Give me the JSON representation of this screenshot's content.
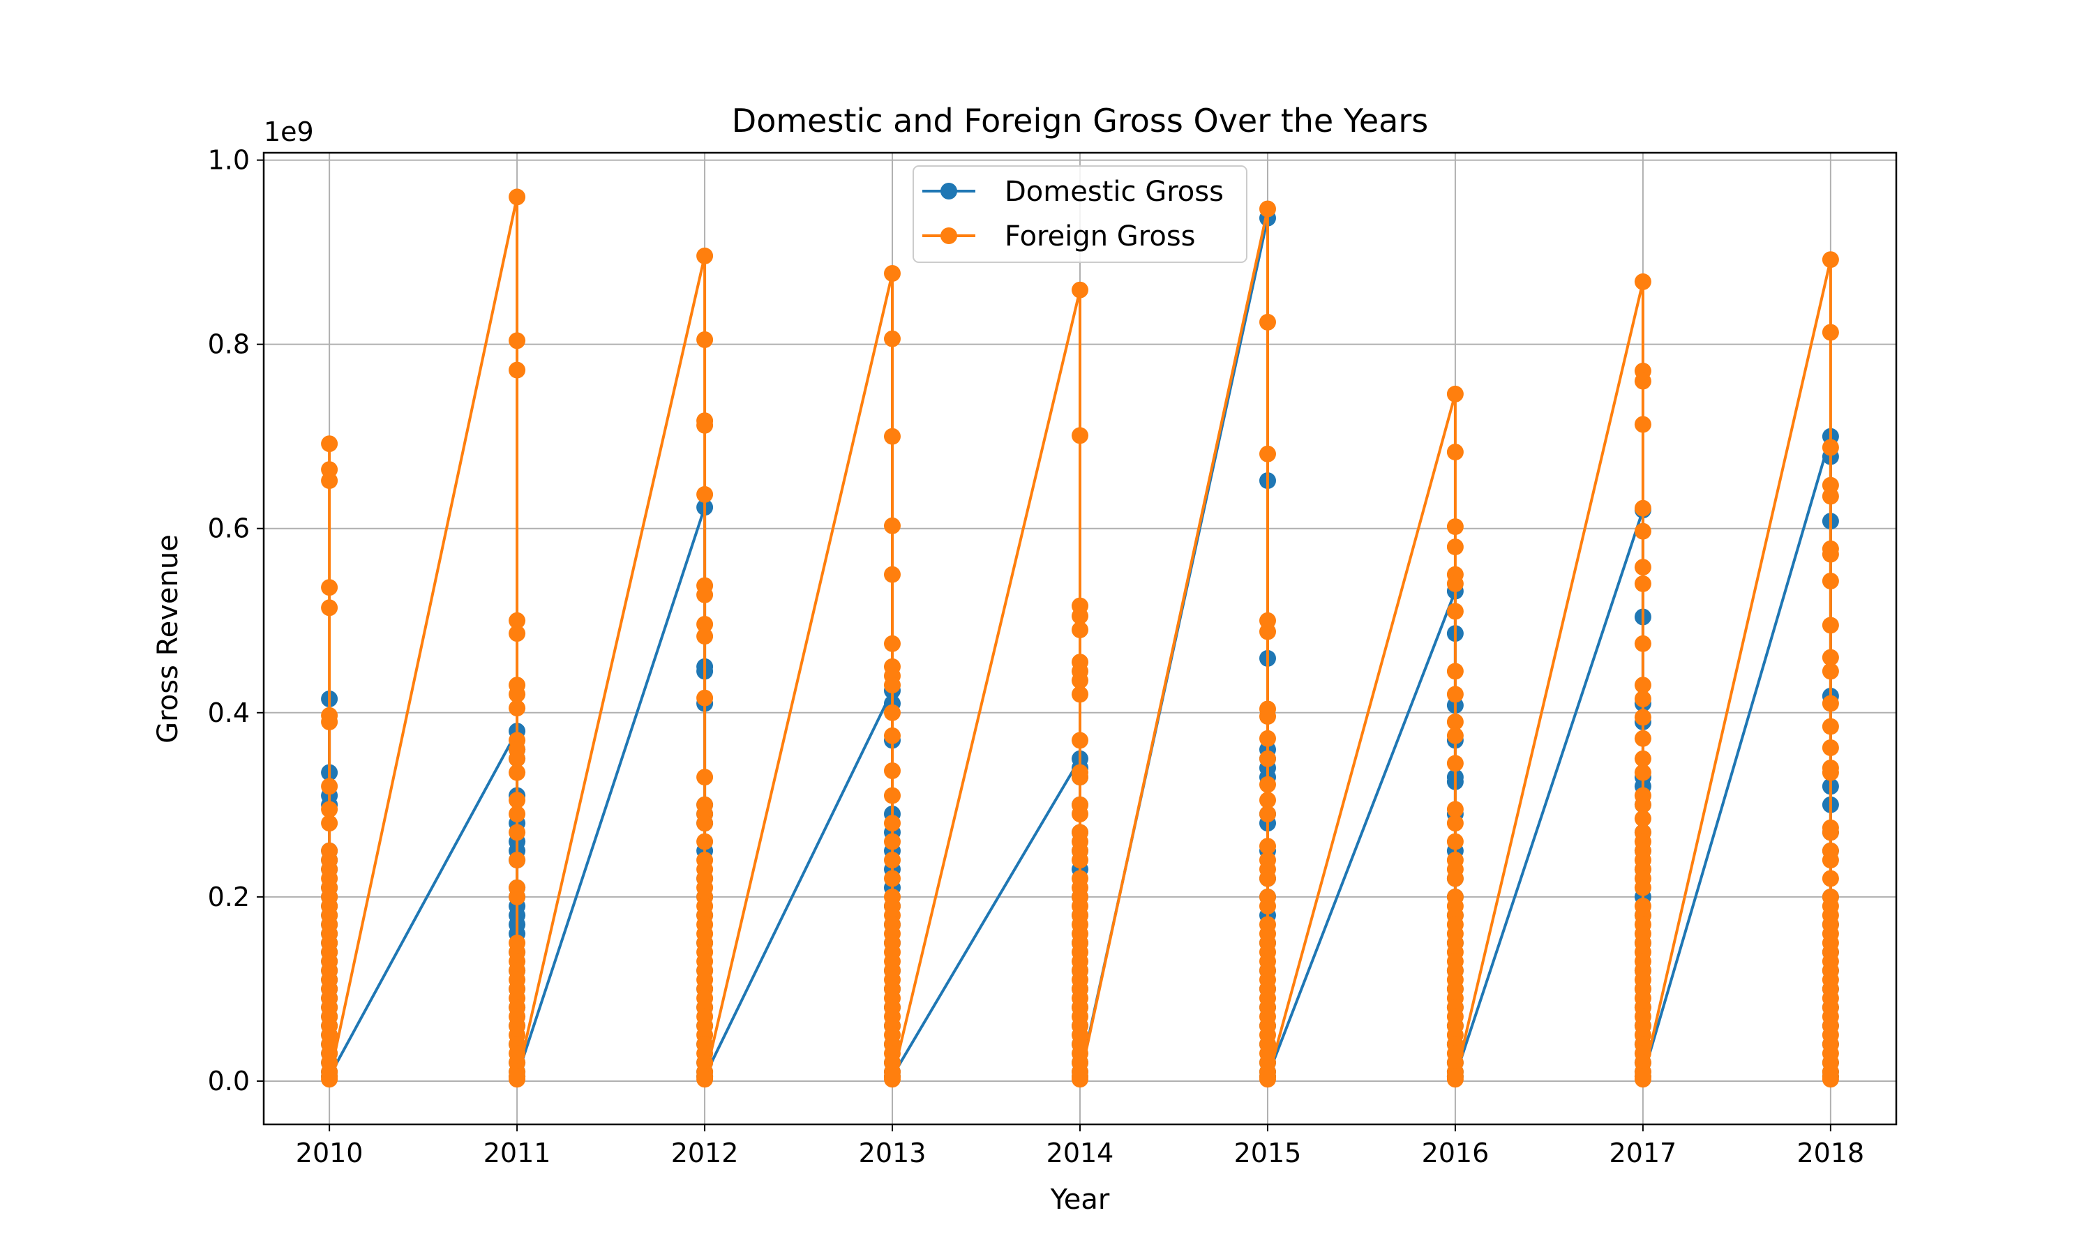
{
  "chart_data": {
    "type": "line",
    "title": "Domestic and Foreign Gross Over the Years",
    "xlabel": "Year",
    "ylabel": "Gross Revenue",
    "y_offset_label": "1e9",
    "xlim": [
      2009.65,
      2018.35
    ],
    "ylim": [
      -0.047,
      1.008
    ],
    "xticks": [
      2010,
      2011,
      2012,
      2013,
      2014,
      2015,
      2016,
      2017,
      2018
    ],
    "xtick_labels": [
      "2010",
      "2011",
      "2012",
      "2013",
      "2014",
      "2015",
      "2016",
      "2017",
      "2018"
    ],
    "yticks": [
      0.0,
      0.2,
      0.4,
      0.6,
      0.8,
      1.0
    ],
    "ytick_labels": [
      "0.0",
      "0.2",
      "0.4",
      "0.6",
      "0.8",
      "1.0"
    ],
    "grid": true,
    "legend_placement": "upper-center",
    "series": [
      {
        "name": "Domestic Gross",
        "color": "#1f77b4",
        "groups": [
          {
            "x": 2010,
            "values": [
              0.415,
              0.335,
              0.31,
              0.3,
              0.25,
              0.24,
              0.23,
              0.21,
              0.2,
              0.19,
              0.18,
              0.17,
              0.16,
              0.15,
              0.14,
              0.13,
              0.12,
              0.11,
              0.1,
              0.09,
              0.08,
              0.07,
              0.06,
              0.05,
              0.04,
              0.03,
              0.02,
              0.01,
              0.005
            ]
          },
          {
            "x": 2011,
            "values": [
              0.38,
              0.36,
              0.35,
              0.31,
              0.28,
              0.26,
              0.25,
              0.24,
              0.21,
              0.2,
              0.19,
              0.18,
              0.17,
              0.16,
              0.14,
              0.12,
              0.1,
              0.08,
              0.06,
              0.04,
              0.02,
              0.01,
              0.005
            ]
          },
          {
            "x": 2012,
            "values": [
              0.623,
              0.45,
              0.445,
              0.41,
              0.3,
              0.29,
              0.28,
              0.25,
              0.22,
              0.2,
              0.18,
              0.15,
              0.12,
              0.1,
              0.08,
              0.06,
              0.04,
              0.02,
              0.01,
              0.005
            ]
          },
          {
            "x": 2013,
            "values": [
              0.424,
              0.41,
              0.37,
              0.29,
              0.27,
              0.25,
              0.23,
              0.21,
              0.19,
              0.17,
              0.15,
              0.12,
              0.1,
              0.08,
              0.06,
              0.04,
              0.02,
              0.01,
              0.005
            ]
          },
          {
            "x": 2014,
            "values": [
              0.35,
              0.34,
              0.33,
              0.3,
              0.27,
              0.25,
              0.23,
              0.2,
              0.18,
              0.15,
              0.12,
              0.1,
              0.08,
              0.06,
              0.04,
              0.02,
              0.01,
              0.005
            ]
          },
          {
            "x": 2015,
            "values": [
              0.937,
              0.652,
              0.459,
              0.36,
              0.35,
              0.34,
              0.33,
              0.29,
              0.28,
              0.25,
              0.22,
              0.2,
              0.18,
              0.15,
              0.12,
              0.1,
              0.08,
              0.06,
              0.04,
              0.02,
              0.01,
              0.005
            ]
          },
          {
            "x": 2016,
            "values": [
              0.532,
              0.486,
              0.408,
              0.37,
              0.33,
              0.325,
              0.29,
              0.25,
              0.22,
              0.2,
              0.18,
              0.15,
              0.12,
              0.1,
              0.08,
              0.06,
              0.04,
              0.02,
              0.01,
              0.005
            ]
          },
          {
            "x": 2017,
            "values": [
              0.62,
              0.504,
              0.41,
              0.39,
              0.33,
              0.32,
              0.3,
              0.27,
              0.25,
              0.23,
              0.2,
              0.18,
              0.15,
              0.12,
              0.1,
              0.08,
              0.06,
              0.04,
              0.02,
              0.01,
              0.005
            ]
          },
          {
            "x": 2018,
            "values": [
              0.7,
              0.678,
              0.608,
              0.418,
              0.32,
              0.3,
              0.27,
              0.25,
              0.2,
              0.17,
              0.14,
              0.12,
              0.1,
              0.08,
              0.06,
              0.04,
              0.02,
              0.01,
              0.005
            ]
          }
        ]
      },
      {
        "name": "Foreign Gross",
        "color": "#ff7f0e",
        "groups": [
          {
            "x": 2010,
            "values": [
              0.692,
              0.664,
              0.652,
              0.536,
              0.514,
              0.397,
              0.39,
              0.32,
              0.295,
              0.28,
              0.25,
              0.24,
              0.23,
              0.22,
              0.21,
              0.2,
              0.19,
              0.18,
              0.17,
              0.16,
              0.15,
              0.14,
              0.13,
              0.12,
              0.11,
              0.1,
              0.09,
              0.08,
              0.07,
              0.06,
              0.05,
              0.04,
              0.03,
              0.02,
              0.01,
              0.005,
              0.002
            ]
          },
          {
            "x": 2011,
            "values": [
              0.96,
              0.804,
              0.772,
              0.5,
              0.486,
              0.43,
              0.42,
              0.405,
              0.37,
              0.36,
              0.35,
              0.335,
              0.305,
              0.29,
              0.27,
              0.24,
              0.21,
              0.2,
              0.15,
              0.14,
              0.13,
              0.12,
              0.11,
              0.1,
              0.09,
              0.08,
              0.07,
              0.06,
              0.05,
              0.04,
              0.03,
              0.02,
              0.01,
              0.005,
              0.002
            ]
          },
          {
            "x": 2012,
            "values": [
              0.896,
              0.805,
              0.717,
              0.712,
              0.637,
              0.538,
              0.528,
              0.496,
              0.483,
              0.416,
              0.33,
              0.3,
              0.29,
              0.28,
              0.26,
              0.24,
              0.23,
              0.22,
              0.21,
              0.2,
              0.19,
              0.18,
              0.17,
              0.16,
              0.15,
              0.14,
              0.13,
              0.12,
              0.11,
              0.1,
              0.09,
              0.08,
              0.07,
              0.06,
              0.05,
              0.04,
              0.03,
              0.02,
              0.01,
              0.005,
              0.002
            ]
          },
          {
            "x": 2013,
            "values": [
              0.877,
              0.806,
              0.7,
              0.603,
              0.55,
              0.475,
              0.45,
              0.44,
              0.43,
              0.4,
              0.375,
              0.337,
              0.31,
              0.28,
              0.26,
              0.24,
              0.22,
              0.2,
              0.19,
              0.18,
              0.17,
              0.16,
              0.15,
              0.14,
              0.13,
              0.12,
              0.11,
              0.1,
              0.09,
              0.08,
              0.07,
              0.06,
              0.05,
              0.04,
              0.03,
              0.02,
              0.01,
              0.005,
              0.002
            ]
          },
          {
            "x": 2014,
            "values": [
              0.859,
              0.701,
              0.516,
              0.505,
              0.49,
              0.455,
              0.445,
              0.435,
              0.42,
              0.37,
              0.335,
              0.33,
              0.3,
              0.29,
              0.27,
              0.26,
              0.25,
              0.24,
              0.22,
              0.21,
              0.2,
              0.19,
              0.18,
              0.17,
              0.16,
              0.15,
              0.14,
              0.13,
              0.12,
              0.11,
              0.1,
              0.09,
              0.08,
              0.07,
              0.06,
              0.05,
              0.04,
              0.03,
              0.02,
              0.01,
              0.005,
              0.002
            ]
          },
          {
            "x": 2015,
            "values": [
              0.947,
              0.824,
              0.681,
              0.5,
              0.488,
              0.404,
              0.396,
              0.372,
              0.35,
              0.322,
              0.305,
              0.29,
              0.255,
              0.24,
              0.23,
              0.22,
              0.2,
              0.19,
              0.17,
              0.16,
              0.15,
              0.14,
              0.13,
              0.12,
              0.11,
              0.1,
              0.09,
              0.08,
              0.07,
              0.06,
              0.05,
              0.04,
              0.03,
              0.02,
              0.01,
              0.005,
              0.002
            ]
          },
          {
            "x": 2016,
            "values": [
              0.746,
              0.683,
              0.602,
              0.58,
              0.55,
              0.54,
              0.51,
              0.445,
              0.42,
              0.39,
              0.375,
              0.345,
              0.295,
              0.28,
              0.26,
              0.24,
              0.23,
              0.22,
              0.2,
              0.19,
              0.18,
              0.17,
              0.16,
              0.15,
              0.14,
              0.13,
              0.12,
              0.11,
              0.1,
              0.09,
              0.08,
              0.07,
              0.06,
              0.05,
              0.04,
              0.03,
              0.02,
              0.01,
              0.005,
              0.002
            ]
          },
          {
            "x": 2017,
            "values": [
              0.868,
              0.771,
              0.76,
              0.713,
              0.622,
              0.597,
              0.558,
              0.54,
              0.475,
              0.43,
              0.415,
              0.395,
              0.372,
              0.35,
              0.335,
              0.31,
              0.3,
              0.285,
              0.27,
              0.26,
              0.25,
              0.24,
              0.23,
              0.22,
              0.21,
              0.19,
              0.18,
              0.17,
              0.16,
              0.15,
              0.14,
              0.13,
              0.12,
              0.11,
              0.1,
              0.09,
              0.08,
              0.07,
              0.06,
              0.05,
              0.04,
              0.03,
              0.02,
              0.01,
              0.005,
              0.002
            ]
          },
          {
            "x": 2018,
            "values": [
              0.892,
              0.813,
              0.688,
              0.647,
              0.635,
              0.578,
              0.572,
              0.543,
              0.495,
              0.46,
              0.445,
              0.41,
              0.385,
              0.362,
              0.34,
              0.335,
              0.275,
              0.27,
              0.25,
              0.24,
              0.22,
              0.2,
              0.19,
              0.18,
              0.17,
              0.16,
              0.15,
              0.14,
              0.13,
              0.12,
              0.11,
              0.1,
              0.09,
              0.08,
              0.07,
              0.06,
              0.05,
              0.04,
              0.03,
              0.02,
              0.01,
              0.005,
              0.002
            ]
          }
        ]
      }
    ]
  }
}
